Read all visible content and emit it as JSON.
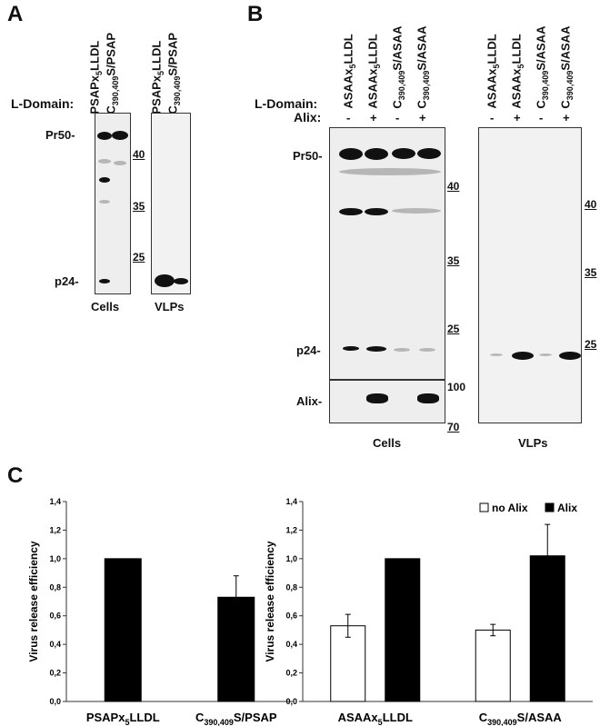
{
  "panel_a": {
    "letter": "A",
    "ldomain_label": "L-Domain:",
    "lanes": [
      {
        "main": "PSAPx",
        "sub": "5",
        "rest": "LLDL"
      },
      {
        "main": "C",
        "sub": "390,409",
        "rest": "S/PSAP"
      }
    ],
    "band_labels": {
      "pr50": "Pr50-",
      "p24": "p24-"
    },
    "markers": [
      "40",
      "35",
      "25"
    ],
    "blot_labels": {
      "cells": "Cells",
      "vlps": "VLPs"
    }
  },
  "panel_b": {
    "letter": "B",
    "ldomain_label": "L-Domain:",
    "alix_label": "Alix:",
    "lanes": [
      {
        "main": "ASAAx",
        "sub": "5",
        "rest": "LLDL",
        "alix": "-"
      },
      {
        "main": "ASAAx",
        "sub": "5",
        "rest": "LLDL",
        "alix": "+"
      },
      {
        "main": "C",
        "sub": "390,409",
        "rest": "S/ASAA",
        "alix": "-"
      },
      {
        "main": "C",
        "sub": "390,409",
        "rest": "S/ASAA",
        "alix": "+"
      }
    ],
    "band_labels": {
      "pr50": "Pr50-",
      "p24": "p24-",
      "alix": "Alix-"
    },
    "markers_cells": [
      "40",
      "35",
      "25"
    ],
    "markers_alix": [
      "100",
      "70"
    ],
    "markers_vlps": [
      "40",
      "35",
      "25"
    ],
    "blot_labels": {
      "cells": "Cells",
      "vlps": "VLPs"
    }
  },
  "panel_c": {
    "letter": "C",
    "legend": {
      "no_alix": "no Alix",
      "alix": "Alix"
    },
    "colors": {
      "filled": "#000000",
      "open": "#ffffff"
    }
  },
  "chart_data": [
    {
      "type": "bar",
      "categories": [
        "PSAPx5LLDL",
        "C390,409S/PSAP"
      ],
      "series": [
        {
          "values": [
            1.0,
            0.73
          ],
          "errors": [
            0,
            0.15
          ]
        }
      ],
      "ylabel": "Virus release efficiency",
      "ylim": [
        0,
        1.4
      ],
      "yticks": [
        "0,0",
        "0,2",
        "0,4",
        "0,6",
        "0,8",
        "1,0",
        "1,2",
        "1,4"
      ],
      "grid": false
    },
    {
      "type": "bar",
      "categories": [
        "ASAAx5LLDL",
        "C390,409S/ASAA"
      ],
      "series": [
        {
          "name": "no Alix",
          "values": [
            0.53,
            0.5
          ],
          "errors": [
            0.08,
            0.04
          ]
        },
        {
          "name": "Alix",
          "values": [
            1.0,
            1.02
          ],
          "errors": [
            0,
            0.22
          ]
        }
      ],
      "ylabel": "Virus release efficiency",
      "ylim": [
        0,
        1.4
      ],
      "yticks": [
        "0,0",
        "0,2",
        "0,4",
        "0,6",
        "0,8",
        "1,0",
        "1,2",
        "1,4"
      ],
      "legend": "top-right",
      "grid": false
    }
  ]
}
